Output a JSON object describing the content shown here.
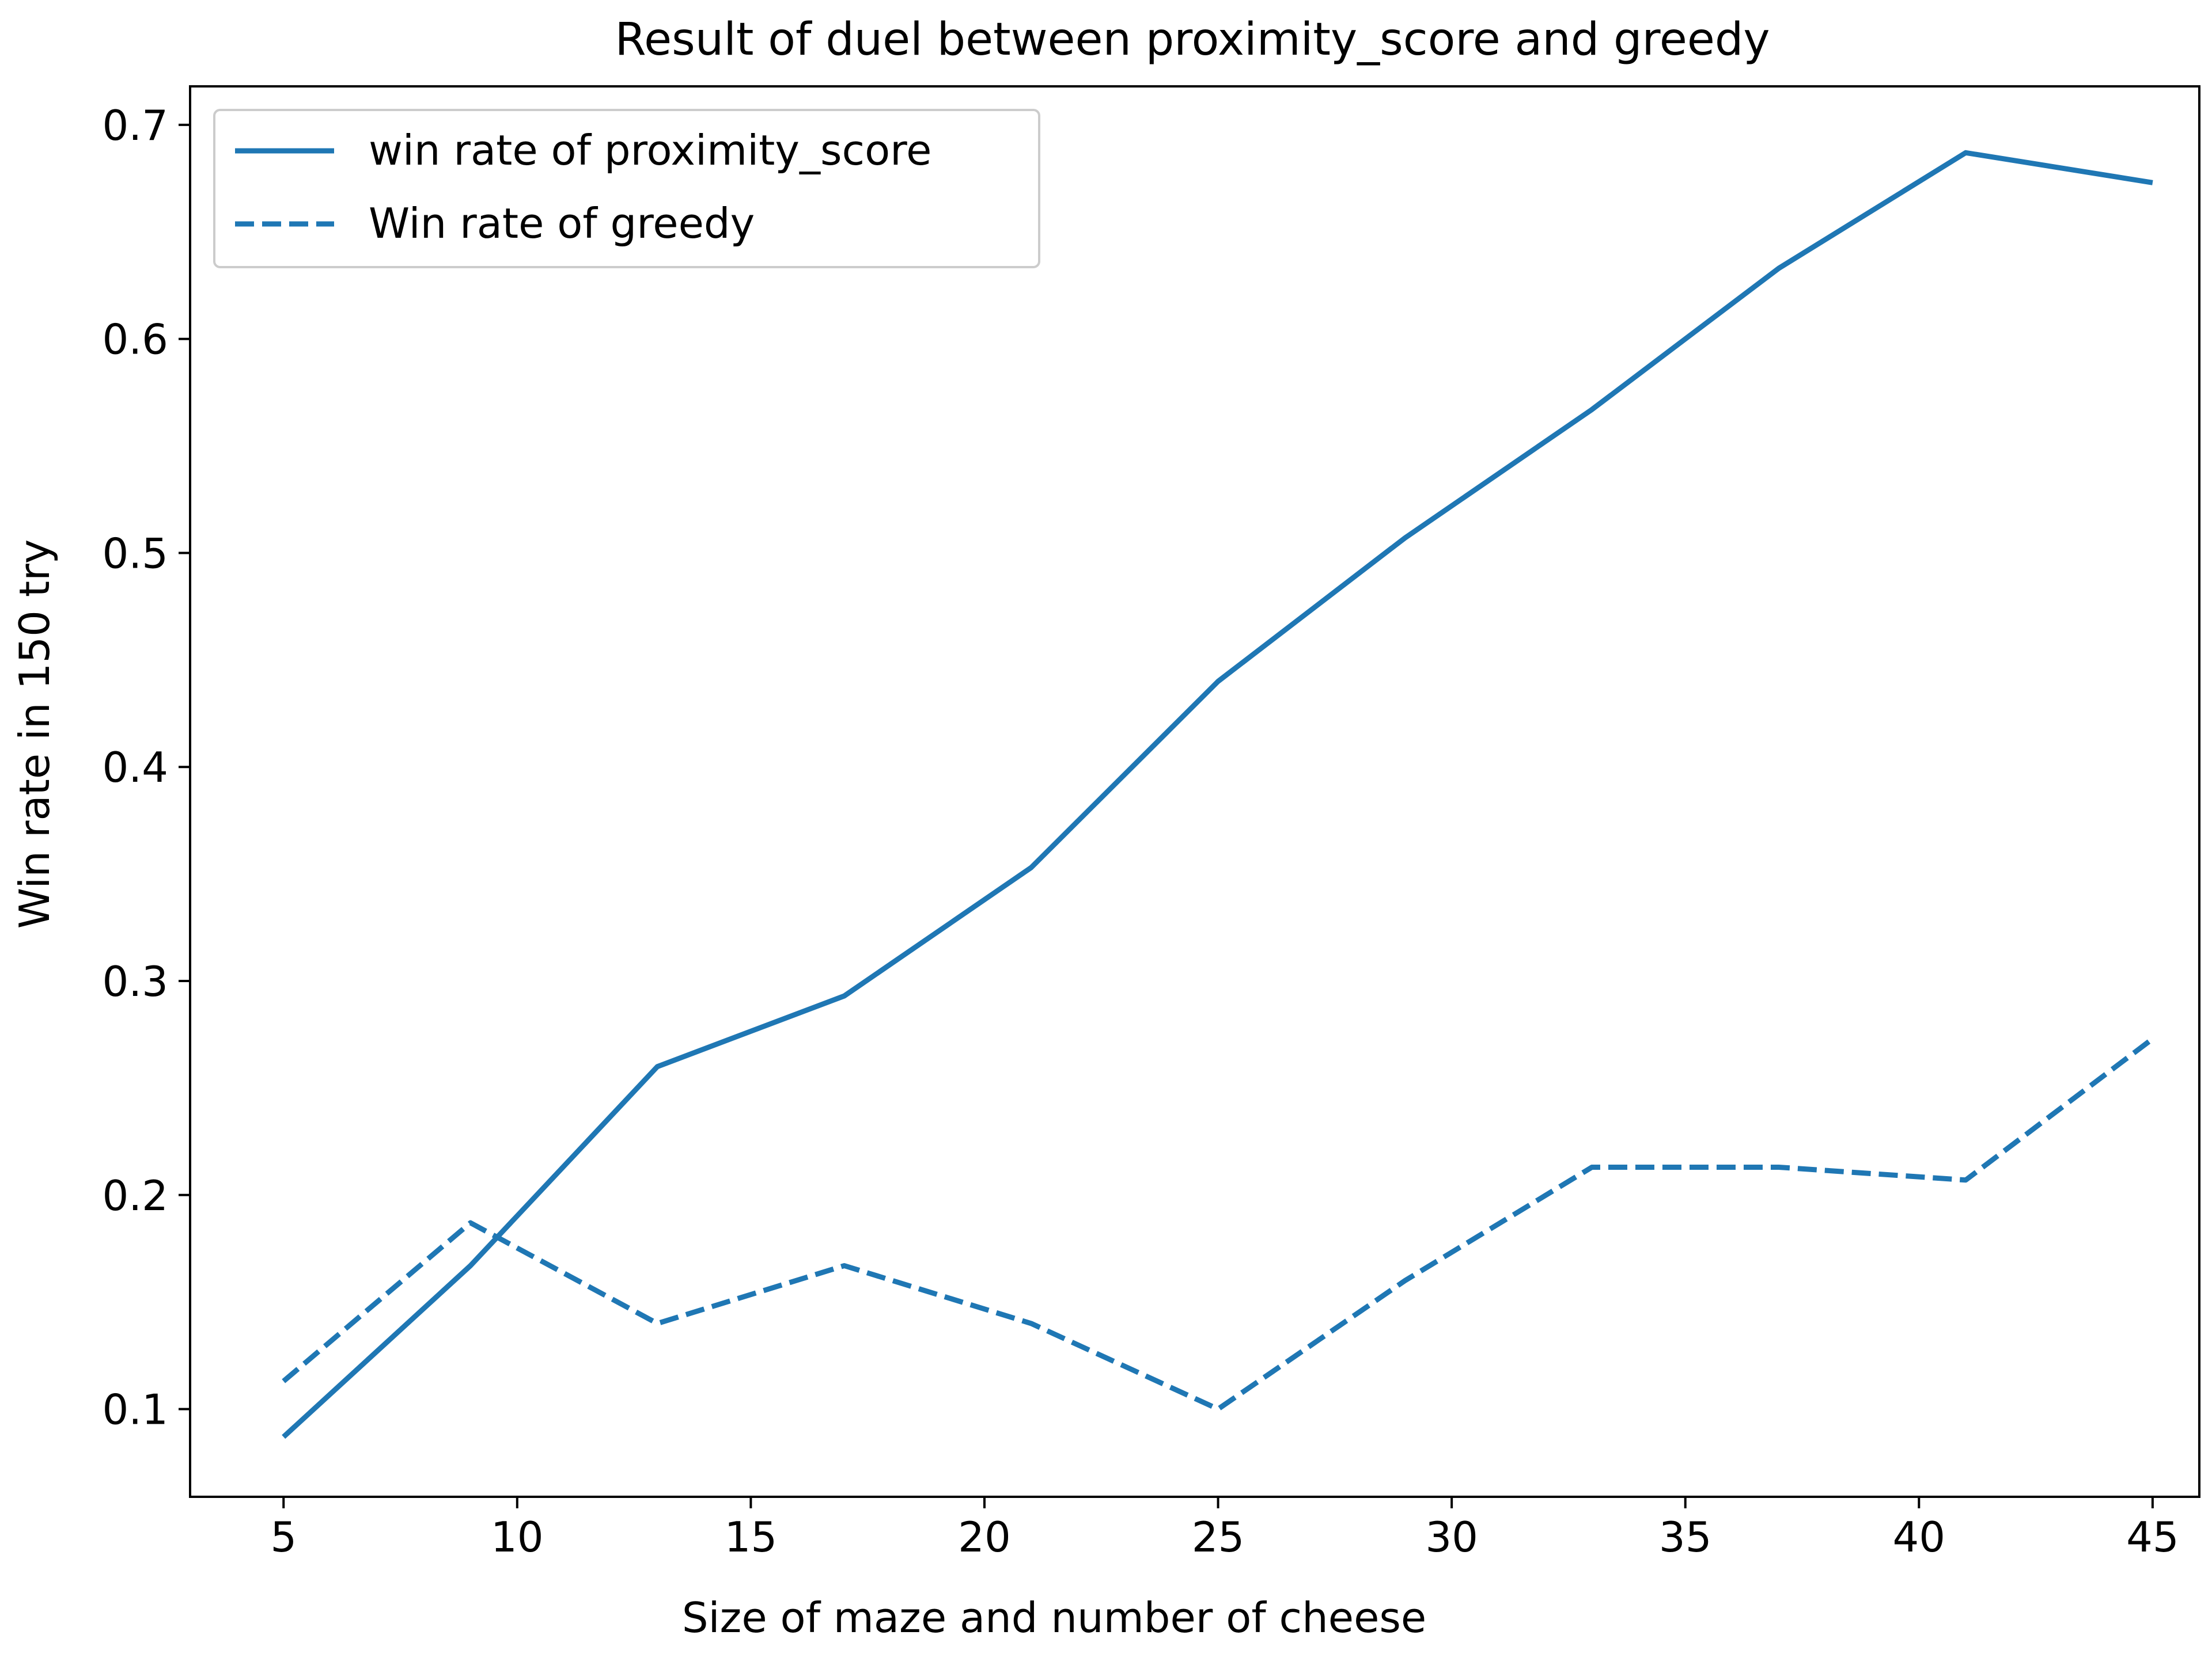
{
  "chart_data": {
    "type": "line",
    "title": "Result of duel between proximity_score and greedy",
    "xlabel": "Size of maze and number of cheese",
    "ylabel": "Win rate in 150 try",
    "x": [
      5,
      9,
      13,
      17,
      21,
      25,
      29,
      33,
      37,
      41,
      45
    ],
    "xlim": [
      3,
      46
    ],
    "ylim": [
      0.059,
      0.718
    ],
    "xticks": [
      5,
      10,
      15,
      20,
      25,
      30,
      35,
      40,
      45
    ],
    "xtick_labels": [
      "5",
      "10",
      "15",
      "20",
      "25",
      "30",
      "35",
      "40",
      "45"
    ],
    "yticks": [
      0.1,
      0.2,
      0.3,
      0.4,
      0.5,
      0.6,
      0.7
    ],
    "ytick_labels": [
      "0.1",
      "0.2",
      "0.3",
      "0.4",
      "0.5",
      "0.6",
      "0.7"
    ],
    "grid": false,
    "legend_position": "top-left",
    "series": [
      {
        "name": "win rate of proximity_score",
        "style": "solid",
        "color": "#1f77b4",
        "values": [
          0.087,
          0.167,
          0.26,
          0.293,
          0.353,
          0.44,
          0.507,
          0.567,
          0.633,
          0.687,
          0.673
        ]
      },
      {
        "name": "Win rate of greedy",
        "style": "dashed",
        "color": "#1f77b4",
        "values": [
          0.113,
          0.187,
          0.14,
          0.167,
          0.14,
          0.1,
          0.16,
          0.213,
          0.213,
          0.207,
          0.273
        ]
      }
    ]
  }
}
